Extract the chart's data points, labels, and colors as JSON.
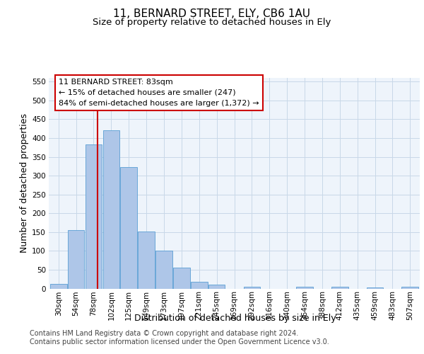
{
  "title": "11, BERNARD STREET, ELY, CB6 1AU",
  "subtitle": "Size of property relative to detached houses in Ely",
  "xlabel": "Distribution of detached houses by size in Ely",
  "ylabel": "Number of detached properties",
  "bin_labels": [
    "30sqm",
    "54sqm",
    "78sqm",
    "102sqm",
    "125sqm",
    "149sqm",
    "173sqm",
    "197sqm",
    "221sqm",
    "245sqm",
    "269sqm",
    "292sqm",
    "316sqm",
    "340sqm",
    "364sqm",
    "388sqm",
    "412sqm",
    "435sqm",
    "459sqm",
    "483sqm",
    "507sqm"
  ],
  "bar_heights": [
    13,
    155,
    383,
    420,
    322,
    152,
    100,
    55,
    18,
    10,
    0,
    5,
    0,
    0,
    4,
    0,
    4,
    0,
    2,
    0,
    4
  ],
  "bar_color": "#aec6e8",
  "bar_edge_color": "#5a9fd4",
  "grid_color": "#c8d8e8",
  "background_color": "#eef4fb",
  "annotation_text": "11 BERNARD STREET: 83sqm\n← 15% of detached houses are smaller (247)\n84% of semi-detached houses are larger (1,372) →",
  "annotation_box_color": "#ffffff",
  "annotation_box_edge": "#cc0000",
  "property_line_color": "#cc0000",
  "ylim": [
    0,
    560
  ],
  "yticks": [
    0,
    50,
    100,
    150,
    200,
    250,
    300,
    350,
    400,
    450,
    500,
    550
  ],
  "footer": "Contains HM Land Registry data © Crown copyright and database right 2024.\nContains public sector information licensed under the Open Government Licence v3.0.",
  "title_fontsize": 11,
  "subtitle_fontsize": 9.5,
  "axis_label_fontsize": 9,
  "tick_fontsize": 7.5,
  "annotation_fontsize": 8,
  "footer_fontsize": 7
}
